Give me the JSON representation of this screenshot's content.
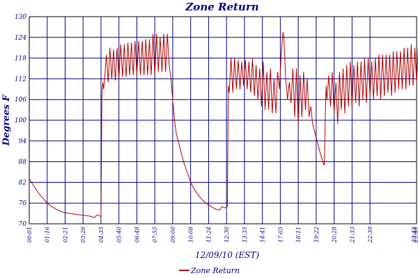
{
  "chart_data": {
    "type": "line",
    "title": "Zone Return",
    "xlabel": "12/09/10 (EST)",
    "ylabel": "Degrees F",
    "ylim": [
      70,
      130
    ],
    "yticks": [
      70,
      76,
      82,
      88,
      94,
      100,
      106,
      112,
      118,
      124,
      130
    ],
    "xticks": [
      "00:01",
      "01:16",
      "02:21",
      "03:26",
      "04:35",
      "05:40",
      "06:48",
      "07:55",
      "09:00",
      "10:08",
      "11:24",
      "12:30",
      "13:35",
      "14:41",
      "17:05",
      "18:11",
      "19:22",
      "20:28",
      "21:33",
      "22:39",
      "23:46",
      "23:45"
    ],
    "grid": true,
    "legend_position": "bottom",
    "series": [
      {
        "name": "Zone Return",
        "color": "#b00000",
        "points": [
          [
            0.0,
            83.0
          ],
          [
            0.25,
            81.0
          ],
          [
            0.5,
            79.0
          ],
          [
            0.75,
            77.5
          ],
          [
            1.0,
            76.0
          ],
          [
            1.25,
            75.0
          ],
          [
            1.5,
            74.2
          ],
          [
            1.75,
            73.6
          ],
          [
            2.0,
            73.2
          ],
          [
            2.5,
            72.8
          ],
          [
            3.0,
            72.5
          ],
          [
            3.4,
            72.2
          ],
          [
            3.6,
            71.8
          ],
          [
            3.8,
            72.6
          ],
          [
            3.95,
            72.2
          ],
          [
            4.0,
            72.0
          ],
          [
            4.05,
            108.0
          ],
          [
            4.1,
            111.0
          ],
          [
            4.15,
            109.0
          ],
          [
            4.2,
            112.0
          ],
          [
            4.3,
            119.0
          ],
          [
            4.4,
            111.0
          ],
          [
            4.5,
            121.0
          ],
          [
            4.6,
            112.0
          ],
          [
            4.7,
            120.5
          ],
          [
            4.8,
            111.5
          ],
          [
            4.9,
            121.0
          ],
          [
            5.0,
            112.0
          ],
          [
            5.1,
            122.0
          ],
          [
            5.2,
            112.5
          ],
          [
            5.3,
            122.0
          ],
          [
            5.4,
            112.5
          ],
          [
            5.5,
            122.5
          ],
          [
            5.6,
            113.0
          ],
          [
            5.7,
            122.5
          ],
          [
            5.8,
            113.0
          ],
          [
            5.9,
            123.0
          ],
          [
            6.0,
            113.0
          ],
          [
            6.1,
            123.0
          ],
          [
            6.2,
            113.0
          ],
          [
            6.3,
            123.0
          ],
          [
            6.4,
            113.0
          ],
          [
            6.5,
            123.5
          ],
          [
            6.6,
            113.0
          ],
          [
            6.7,
            123.5
          ],
          [
            6.8,
            113.0
          ],
          [
            6.9,
            125.0
          ],
          [
            7.0,
            113.0
          ],
          [
            7.1,
            125.0
          ],
          [
            7.2,
            114.0
          ],
          [
            7.3,
            124.0
          ],
          [
            7.4,
            114.0
          ],
          [
            7.5,
            125.0
          ],
          [
            7.6,
            114.0
          ],
          [
            7.7,
            125.0
          ],
          [
            7.8,
            116.0
          ],
          [
            7.9,
            112.0
          ],
          [
            8.0,
            106.0
          ],
          [
            8.1,
            100.0
          ],
          [
            8.2,
            96.0
          ],
          [
            8.4,
            92.0
          ],
          [
            8.6,
            88.0
          ],
          [
            8.8,
            85.0
          ],
          [
            9.0,
            82.0
          ],
          [
            9.2,
            80.0
          ],
          [
            9.4,
            78.5
          ],
          [
            9.6,
            77.2
          ],
          [
            9.8,
            76.2
          ],
          [
            10.0,
            75.5
          ],
          [
            10.2,
            74.8
          ],
          [
            10.4,
            74.2
          ],
          [
            10.6,
            74.0
          ],
          [
            10.75,
            75.0
          ],
          [
            10.9,
            74.6
          ],
          [
            11.05,
            75.0
          ],
          [
            11.1,
            110.0
          ],
          [
            11.15,
            108.0
          ],
          [
            11.25,
            118.0
          ],
          [
            11.35,
            108.0
          ],
          [
            11.45,
            118.0
          ],
          [
            11.55,
            109.0
          ],
          [
            11.65,
            117.5
          ],
          [
            11.75,
            109.0
          ],
          [
            11.85,
            117.0
          ],
          [
            11.95,
            110.0
          ],
          [
            12.05,
            117.5
          ],
          [
            12.15,
            109.0
          ],
          [
            12.25,
            117.0
          ],
          [
            12.35,
            108.0
          ],
          [
            12.45,
            118.0
          ],
          [
            12.55,
            107.0
          ],
          [
            12.65,
            116.0
          ],
          [
            12.75,
            106.0
          ],
          [
            12.85,
            115.0
          ],
          [
            12.95,
            104.0
          ],
          [
            13.05,
            117.0
          ],
          [
            13.15,
            103.0
          ],
          [
            13.25,
            114.0
          ],
          [
            13.35,
            103.0
          ],
          [
            13.45,
            115.0
          ],
          [
            13.55,
            102.0
          ],
          [
            13.65,
            112.0
          ],
          [
            13.75,
            102.0
          ],
          [
            13.85,
            114.0
          ],
          [
            13.95,
            109.0
          ],
          [
            14.05,
            119.0
          ],
          [
            14.15,
            125.5
          ],
          [
            14.2,
            124.0
          ],
          [
            14.3,
            112.0
          ],
          [
            14.4,
            106.0
          ],
          [
            14.5,
            111.0
          ],
          [
            14.6,
            105.0
          ],
          [
            14.7,
            115.0
          ],
          [
            14.8,
            101.0
          ],
          [
            14.9,
            115.0
          ],
          [
            15.0,
            99.0
          ],
          [
            15.1,
            113.0
          ],
          [
            15.2,
            101.0
          ],
          [
            15.3,
            114.0
          ],
          [
            15.4,
            103.0
          ],
          [
            15.5,
            112.0
          ],
          [
            15.6,
            101.0
          ],
          [
            15.7,
            104.0
          ],
          [
            15.8,
            99.0
          ],
          [
            16.0,
            95.0
          ],
          [
            16.2,
            91.0
          ],
          [
            16.4,
            87.5
          ],
          [
            16.45,
            87.0
          ],
          [
            16.55,
            110.0
          ],
          [
            16.6,
            106.0
          ],
          [
            16.7,
            113.0
          ],
          [
            16.8,
            104.0
          ],
          [
            16.9,
            114.0
          ],
          [
            17.0,
            102.0
          ],
          [
            17.1,
            111.0
          ],
          [
            17.2,
            99.0
          ],
          [
            17.3,
            114.0
          ],
          [
            17.4,
            103.0
          ],
          [
            17.5,
            115.0
          ],
          [
            17.6,
            102.0
          ],
          [
            17.7,
            116.0
          ],
          [
            17.8,
            104.0
          ],
          [
            17.9,
            117.0
          ],
          [
            18.0,
            104.0
          ],
          [
            18.1,
            116.0
          ],
          [
            18.2,
            105.0
          ],
          [
            18.3,
            117.0
          ],
          [
            18.4,
            104.0
          ],
          [
            18.5,
            117.0
          ],
          [
            18.6,
            106.0
          ],
          [
            18.7,
            118.0
          ],
          [
            18.8,
            105.0
          ],
          [
            18.9,
            118.0
          ],
          [
            19.0,
            107.0
          ],
          [
            19.1,
            117.0
          ],
          [
            19.2,
            106.0
          ],
          [
            19.3,
            118.0
          ],
          [
            19.4,
            107.0
          ],
          [
            19.5,
            119.0
          ],
          [
            19.6,
            106.0
          ],
          [
            19.7,
            119.0
          ],
          [
            19.8,
            107.0
          ],
          [
            19.9,
            119.0
          ],
          [
            20.0,
            108.0
          ],
          [
            20.1,
            119.0
          ],
          [
            20.2,
            107.0
          ],
          [
            20.3,
            120.0
          ],
          [
            20.4,
            108.0
          ],
          [
            20.5,
            120.0
          ],
          [
            20.6,
            109.0
          ],
          [
            20.7,
            120.0
          ],
          [
            20.8,
            109.0
          ],
          [
            20.9,
            121.0
          ],
          [
            21.0,
            109.0
          ],
          [
            21.1,
            121.0
          ],
          [
            21.2,
            110.0
          ],
          [
            21.3,
            122.0
          ],
          [
            21.4,
            110.0
          ],
          [
            21.5,
            121.0
          ],
          [
            21.6,
            111.0
          ],
          [
            21.7,
            122.0
          ],
          [
            21.8,
            111.0
          ],
          [
            21.9,
            123.0
          ],
          [
            22.0,
            112.0
          ],
          [
            22.1,
            122.0
          ],
          [
            22.2,
            111.0
          ],
          [
            22.3,
            123.0
          ],
          [
            22.4,
            112.0
          ],
          [
            22.5,
            121.0
          ],
          [
            22.6,
            109.0
          ],
          [
            22.7,
            123.0
          ],
          [
            22.8,
            110.0
          ],
          [
            22.9,
            121.0
          ],
          [
            23.0,
            110.0
          ],
          [
            23.1,
            112.0
          ],
          [
            23.2,
            108.0
          ],
          [
            23.3,
            104.0
          ],
          [
            23.4,
            100.0
          ],
          [
            23.5,
            96.0
          ],
          [
            23.6,
            93.0
          ],
          [
            23.7,
            91.0
          ],
          [
            23.75,
            90.0
          ]
        ]
      }
    ]
  }
}
